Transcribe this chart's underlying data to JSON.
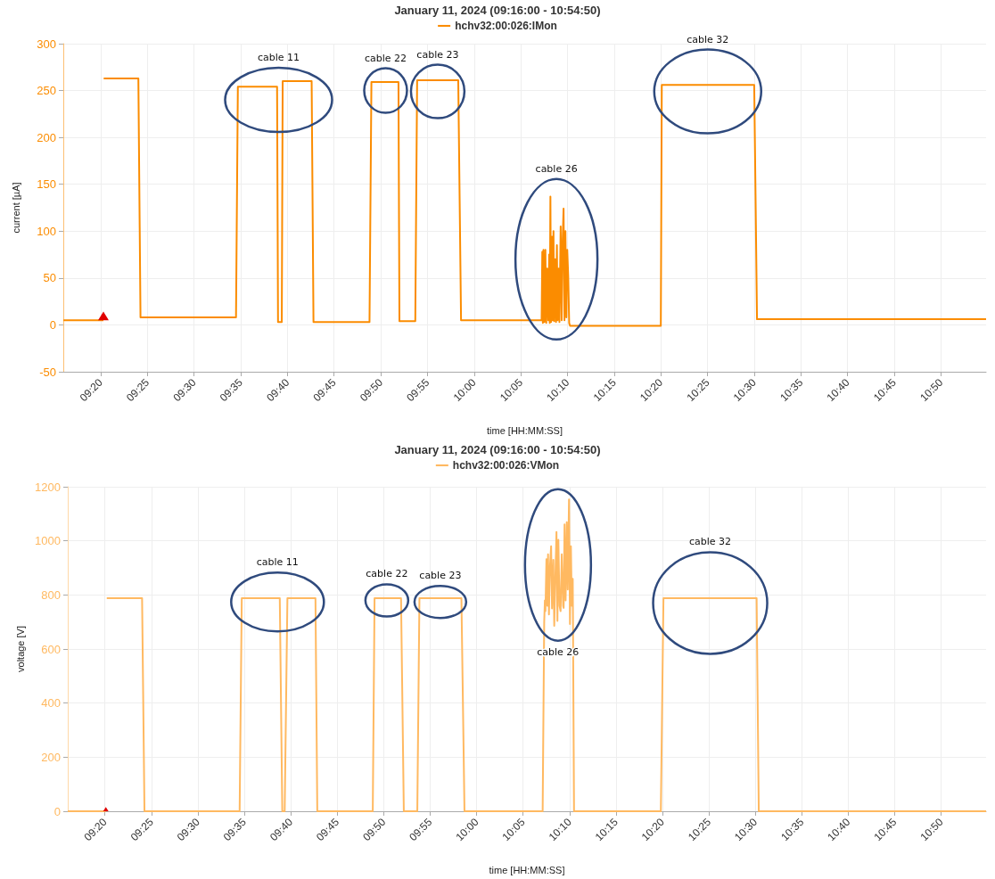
{
  "chart_data": [
    {
      "type": "line",
      "title": "January 11, 2024 (09:16:00 - 10:54:50)",
      "xlabel": "time [HH:MM:SS]",
      "ylabel": "current [µA]",
      "x": [
        9.2667,
        9.3383,
        9.3385,
        9.3388,
        9.4007,
        9.4045,
        9.575,
        9.5783,
        9.6483,
        9.65,
        9.6567,
        9.6583,
        9.71,
        9.7133,
        9.8133,
        9.8167,
        9.865,
        9.8667,
        9.895,
        9.8983,
        9.9717,
        9.9767,
        10.1205,
        10.1217,
        10.1227,
        10.1238,
        10.1255,
        10.1272,
        10.1288,
        10.1305,
        10.1323,
        10.134,
        10.135,
        10.1362,
        10.1373,
        10.139,
        10.14,
        10.1417,
        10.1428,
        10.1445,
        10.1462,
        10.1478,
        10.149,
        10.1507,
        10.1523,
        10.1545,
        10.1563,
        10.158,
        10.1597,
        10.1613,
        10.163,
        10.1647,
        10.1663,
        10.168,
        10.1697,
        10.1713,
        10.3333,
        10.335,
        10.5,
        10.505,
        10.9139
      ],
      "series": [
        {
          "name": "hchv32:00:026:IMon",
          "color": "#fb8c00",
          "values": [
            5,
            5,
            null,
            263,
            263,
            8,
            8,
            254,
            254,
            3,
            3,
            260,
            260,
            3,
            3,
            259,
            259,
            4,
            4,
            261,
            261,
            5,
            5,
            78,
            2,
            80,
            3,
            80,
            2,
            60,
            5,
            75,
            2,
            137,
            3,
            94,
            5,
            100,
            4,
            70,
            3,
            85,
            5,
            60,
            3,
            105,
            5,
            90,
            124,
            5,
            100,
            8,
            80,
            52,
            2,
            -1,
            -1,
            256,
            256,
            6,
            6
          ]
        }
      ],
      "xlim": [
        9.2667,
        10.9139
      ],
      "xticks": [
        {
          "value": 9.3333,
          "label": "09:20"
        },
        {
          "value": 9.4167,
          "label": "09:25"
        },
        {
          "value": 9.5,
          "label": "09:30"
        },
        {
          "value": 9.5833,
          "label": "09:35"
        },
        {
          "value": 9.6667,
          "label": "09:40"
        },
        {
          "value": 9.75,
          "label": "09:45"
        },
        {
          "value": 9.8333,
          "label": "09:50"
        },
        {
          "value": 9.9167,
          "label": "09:55"
        },
        {
          "value": 10,
          "label": "10:00"
        },
        {
          "value": 10.0833,
          "label": "10:05"
        },
        {
          "value": 10.1667,
          "label": "10:10"
        },
        {
          "value": 10.25,
          "label": "10:15"
        },
        {
          "value": 10.3333,
          "label": "10:20"
        },
        {
          "value": 10.4167,
          "label": "10:25"
        },
        {
          "value": 10.5,
          "label": "10:30"
        },
        {
          "value": 10.5833,
          "label": "10:35"
        },
        {
          "value": 10.6667,
          "label": "10:40"
        },
        {
          "value": 10.75,
          "label": "10:45"
        },
        {
          "value": 10.8333,
          "label": "10:50"
        }
      ],
      "ylim": [
        -50,
        300
      ],
      "yticks": [
        -50,
        0,
        50,
        100,
        150,
        200,
        250,
        300
      ],
      "annotations": [
        "cable 11",
        "cable 22",
        "cable 23",
        "cable 26",
        "cable 32"
      ],
      "grid": true,
      "legend": "top",
      "marker": "none",
      "line_style": "solid"
    },
    {
      "type": "line",
      "title": "January 11, 2024 (09:16:00 - 10:54:50)",
      "xlabel": "time [HH:MM:SS]",
      "ylabel": "voltage [V]",
      "x": [
        9.2667,
        9.335,
        9.3352,
        9.3367,
        9.4,
        9.4043,
        9.575,
        9.5788,
        9.647,
        9.6515,
        9.6558,
        9.6607,
        9.711,
        9.7143,
        9.8138,
        9.817,
        9.8645,
        9.8695,
        9.8937,
        9.8975,
        9.9728,
        9.9783,
        10.1185,
        10.1213,
        10.1225,
        10.1235,
        10.1253,
        10.127,
        10.1282,
        10.1298,
        10.1315,
        10.1337,
        10.1353,
        10.1377,
        10.1393,
        10.1417,
        10.1433,
        10.145,
        10.1467,
        10.1488,
        10.1507,
        10.1528,
        10.1552,
        10.1562,
        10.1578,
        10.1597,
        10.1618,
        10.1635,
        10.1658,
        10.1675,
        10.1692,
        10.1708,
        10.1725,
        10.1748,
        10.3305,
        10.3352,
        10.5023,
        10.5062,
        10.9139
      ],
      "series": [
        {
          "name": "hchv32:00:026:VMon",
          "color": "#ffb961",
          "values": [
            0,
            0,
            null,
            788,
            788,
            0,
            0,
            788,
            788,
            0,
            0,
            788,
            788,
            0,
            0,
            788,
            788,
            0,
            0,
            788,
            788,
            0,
            0,
            700,
            780,
            740,
            932,
            760,
            950,
            728,
            900,
            980,
            750,
            930,
            686,
            900,
            1033,
            704,
            1004,
            760,
            740,
            950,
            760,
            752,
            1061,
            780,
            1069,
            820,
            1153,
            692,
            980,
            760,
            860,
            0,
            0,
            788,
            788,
            0,
            0
          ]
        }
      ],
      "xlim": [
        9.2667,
        10.9139
      ],
      "xticks": [
        {
          "value": 9.3333,
          "label": "09:20"
        },
        {
          "value": 9.4167,
          "label": "09:25"
        },
        {
          "value": 9.5,
          "label": "09:30"
        },
        {
          "value": 9.5833,
          "label": "09:35"
        },
        {
          "value": 9.6667,
          "label": "09:40"
        },
        {
          "value": 9.75,
          "label": "09:45"
        },
        {
          "value": 9.8333,
          "label": "09:50"
        },
        {
          "value": 9.9167,
          "label": "09:55"
        },
        {
          "value": 10,
          "label": "10:00"
        },
        {
          "value": 10.0833,
          "label": "10:05"
        },
        {
          "value": 10.1667,
          "label": "10:10"
        },
        {
          "value": 10.25,
          "label": "10:15"
        },
        {
          "value": 10.3333,
          "label": "10:20"
        },
        {
          "value": 10.4167,
          "label": "10:25"
        },
        {
          "value": 10.5,
          "label": "10:30"
        },
        {
          "value": 10.5833,
          "label": "10:35"
        },
        {
          "value": 10.6667,
          "label": "10:40"
        },
        {
          "value": 10.75,
          "label": "10:45"
        },
        {
          "value": 10.8333,
          "label": "10:50"
        }
      ],
      "ylim": [
        0,
        1200
      ],
      "yticks": [
        0,
        200,
        400,
        600,
        800,
        1000,
        1200
      ],
      "annotations": [
        "cable 11",
        "cable 22",
        "cable 23",
        "cable 26",
        "cable 32"
      ],
      "grid": true,
      "legend": "top",
      "marker": "none",
      "line_style": "solid"
    }
  ]
}
